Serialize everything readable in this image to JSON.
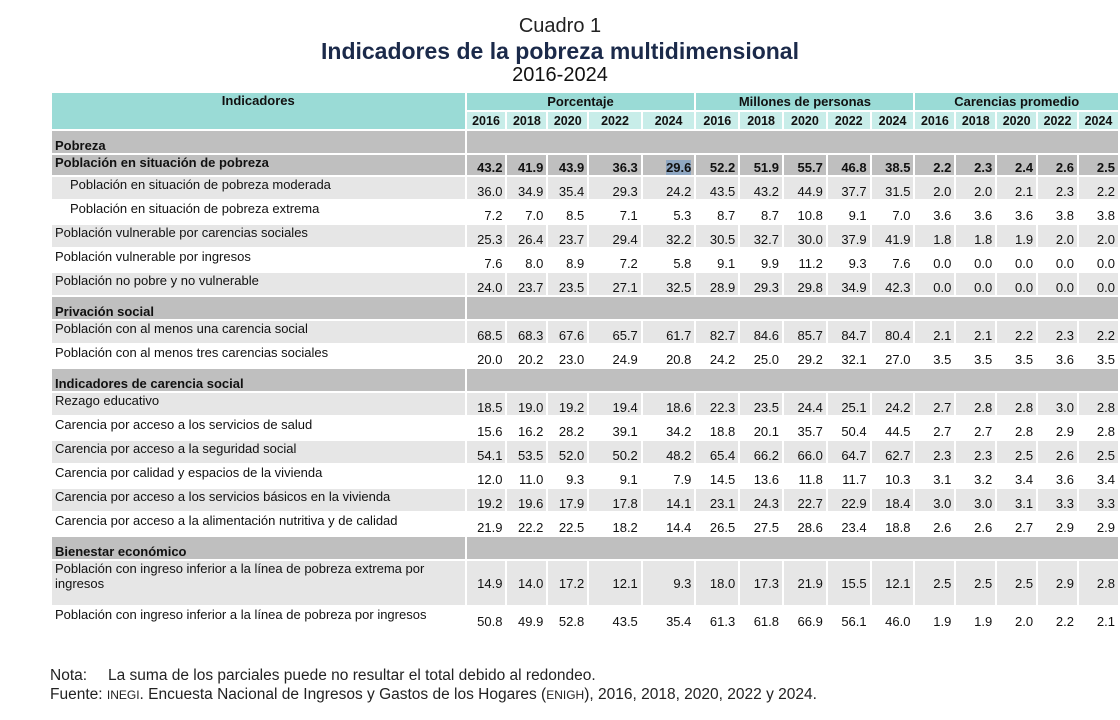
{
  "titles": {
    "cuadro": "Cuadro 1",
    "title": "Indicadores de la pobreza multidimensional",
    "period": "2016-2024"
  },
  "header": {
    "indicadores": "Indicadores",
    "groups": [
      "Porcentaje",
      "Millones de personas",
      "Carencias promedio"
    ],
    "years": [
      "2016",
      "2018",
      "2020",
      "2022",
      "2024"
    ]
  },
  "colors": {
    "header_group": "#9adbd6",
    "header_year": "#c8ede9",
    "section_row": "#bfbfbf",
    "stripe": "#e6e6e6",
    "title": "#1b2a4a",
    "selection": "#8fa7c2"
  },
  "sections": [
    {
      "title": "Pobreza",
      "rows": [
        {
          "label": "Población en situación de pobreza",
          "bold": true,
          "pct": [
            "43.2",
            "41.9",
            "43.9",
            "36.3",
            "29.6"
          ],
          "mill": [
            "52.2",
            "51.9",
            "55.7",
            "46.8",
            "38.5"
          ],
          "car": [
            "2.2",
            "2.3",
            "2.4",
            "2.6",
            "2.5"
          ]
        },
        {
          "label": "Población en situación de pobreza moderada",
          "indent": true,
          "pct": [
            "36.0",
            "34.9",
            "35.4",
            "29.3",
            "24.2"
          ],
          "mill": [
            "43.5",
            "43.2",
            "44.9",
            "37.7",
            "31.5"
          ],
          "car": [
            "2.0",
            "2.0",
            "2.1",
            "2.3",
            "2.2"
          ]
        },
        {
          "label": "Población en situación de pobreza extrema",
          "indent": true,
          "pct": [
            "7.2",
            "7.0",
            "8.5",
            "7.1",
            "5.3"
          ],
          "mill": [
            "8.7",
            "8.7",
            "10.8",
            "9.1",
            "7.0"
          ],
          "car": [
            "3.6",
            "3.6",
            "3.6",
            "3.8",
            "3.8"
          ]
        },
        {
          "label": "Población vulnerable por carencias sociales",
          "pct": [
            "25.3",
            "26.4",
            "23.7",
            "29.4",
            "32.2"
          ],
          "mill": [
            "30.5",
            "32.7",
            "30.0",
            "37.9",
            "41.9"
          ],
          "car": [
            "1.8",
            "1.8",
            "1.9",
            "2.0",
            "2.0"
          ]
        },
        {
          "label": "Población vulnerable por ingresos",
          "pct": [
            "7.6",
            "8.0",
            "8.9",
            "7.2",
            "5.8"
          ],
          "mill": [
            "9.1",
            "9.9",
            "11.2",
            "9.3",
            "7.6"
          ],
          "car": [
            "0.0",
            "0.0",
            "0.0",
            "0.0",
            "0.0"
          ]
        },
        {
          "label": "Población no pobre y no vulnerable",
          "pct": [
            "24.0",
            "23.7",
            "23.5",
            "27.1",
            "32.5"
          ],
          "mill": [
            "28.9",
            "29.3",
            "29.8",
            "34.9",
            "42.3"
          ],
          "car": [
            "0.0",
            "0.0",
            "0.0",
            "0.0",
            "0.0"
          ]
        }
      ]
    },
    {
      "title": "Privación social",
      "rows": [
        {
          "label": "Población con al menos una carencia social",
          "pct": [
            "68.5",
            "68.3",
            "67.6",
            "65.7",
            "61.7"
          ],
          "mill": [
            "82.7",
            "84.6",
            "85.7",
            "84.7",
            "80.4"
          ],
          "car": [
            "2.1",
            "2.1",
            "2.2",
            "2.3",
            "2.2"
          ]
        },
        {
          "label": "Población con al menos tres carencias sociales",
          "pct": [
            "20.0",
            "20.2",
            "23.0",
            "24.9",
            "20.8"
          ],
          "mill": [
            "24.2",
            "25.0",
            "29.2",
            "32.1",
            "27.0"
          ],
          "car": [
            "3.5",
            "3.5",
            "3.5",
            "3.6",
            "3.5"
          ]
        }
      ]
    },
    {
      "title": "Indicadores de carencia social",
      "rows": [
        {
          "label": "Rezago educativo",
          "pct": [
            "18.5",
            "19.0",
            "19.2",
            "19.4",
            "18.6"
          ],
          "mill": [
            "22.3",
            "23.5",
            "24.4",
            "25.1",
            "24.2"
          ],
          "car": [
            "2.7",
            "2.8",
            "2.8",
            "3.0",
            "2.8"
          ]
        },
        {
          "label": "Carencia por acceso a los servicios de salud",
          "pct": [
            "15.6",
            "16.2",
            "28.2",
            "39.1",
            "34.2"
          ],
          "mill": [
            "18.8",
            "20.1",
            "35.7",
            "50.4",
            "44.5"
          ],
          "car": [
            "2.7",
            "2.7",
            "2.8",
            "2.9",
            "2.8"
          ]
        },
        {
          "label": "Carencia por acceso a la seguridad social",
          "pct": [
            "54.1",
            "53.5",
            "52.0",
            "50.2",
            "48.2"
          ],
          "mill": [
            "65.4",
            "66.2",
            "66.0",
            "64.7",
            "62.7"
          ],
          "car": [
            "2.3",
            "2.3",
            "2.5",
            "2.6",
            "2.5"
          ]
        },
        {
          "label": "Carencia por calidad y espacios de la vivienda",
          "pct": [
            "12.0",
            "11.0",
            "9.3",
            "9.1",
            "7.9"
          ],
          "mill": [
            "14.5",
            "13.6",
            "11.8",
            "11.7",
            "10.3"
          ],
          "car": [
            "3.1",
            "3.2",
            "3.4",
            "3.6",
            "3.4"
          ]
        },
        {
          "label": "Carencia por acceso a los servicios básicos en la vivienda",
          "pct": [
            "19.2",
            "19.6",
            "17.9",
            "17.8",
            "14.1"
          ],
          "mill": [
            "23.1",
            "24.3",
            "22.7",
            "22.9",
            "18.4"
          ],
          "car": [
            "3.0",
            "3.0",
            "3.1",
            "3.3",
            "3.3"
          ]
        },
        {
          "label": "Carencia por acceso a la alimentación nutritiva y de calidad",
          "pct": [
            "21.9",
            "22.2",
            "22.5",
            "18.2",
            "14.4"
          ],
          "mill": [
            "26.5",
            "27.5",
            "28.6",
            "23.4",
            "18.8"
          ],
          "car": [
            "2.6",
            "2.6",
            "2.7",
            "2.9",
            "2.9"
          ]
        }
      ]
    },
    {
      "title": "Bienestar económico",
      "rows": [
        {
          "label": "Población con ingreso inferior a la línea de pobreza extrema por ingresos",
          "pct": [
            "14.9",
            "14.0",
            "17.2",
            "12.1",
            "9.3"
          ],
          "mill": [
            "18.0",
            "17.3",
            "21.9",
            "15.5",
            "12.1"
          ],
          "car": [
            "2.5",
            "2.5",
            "2.5",
            "2.9",
            "2.8"
          ]
        },
        {
          "label": "Población con ingreso inferior a la línea de pobreza por ingresos",
          "pct": [
            "50.8",
            "49.9",
            "52.8",
            "43.5",
            "35.4"
          ],
          "mill": [
            "61.3",
            "61.8",
            "66.9",
            "56.1",
            "46.0"
          ],
          "car": [
            "1.9",
            "1.9",
            "2.0",
            "2.2",
            "2.1"
          ]
        }
      ]
    }
  ],
  "selected_cell": {
    "row": "Población en situación de pobreza",
    "group": "Porcentaje",
    "year": "2024",
    "value": "29.6"
  },
  "notes": {
    "nota_label": "Nota:",
    "nota_text": "La suma de los parciales puede no resultar el total debido al redondeo.",
    "fuente_label": "Fuente:",
    "fuente_org": "INEGI",
    "fuente_text_1": ". Encuesta Nacional de Ingresos y Gastos de los Hogares (",
    "fuente_abbr": "ENIGH",
    "fuente_text_2": "), 2016, 2018, 2020, 2022 y 2024."
  }
}
